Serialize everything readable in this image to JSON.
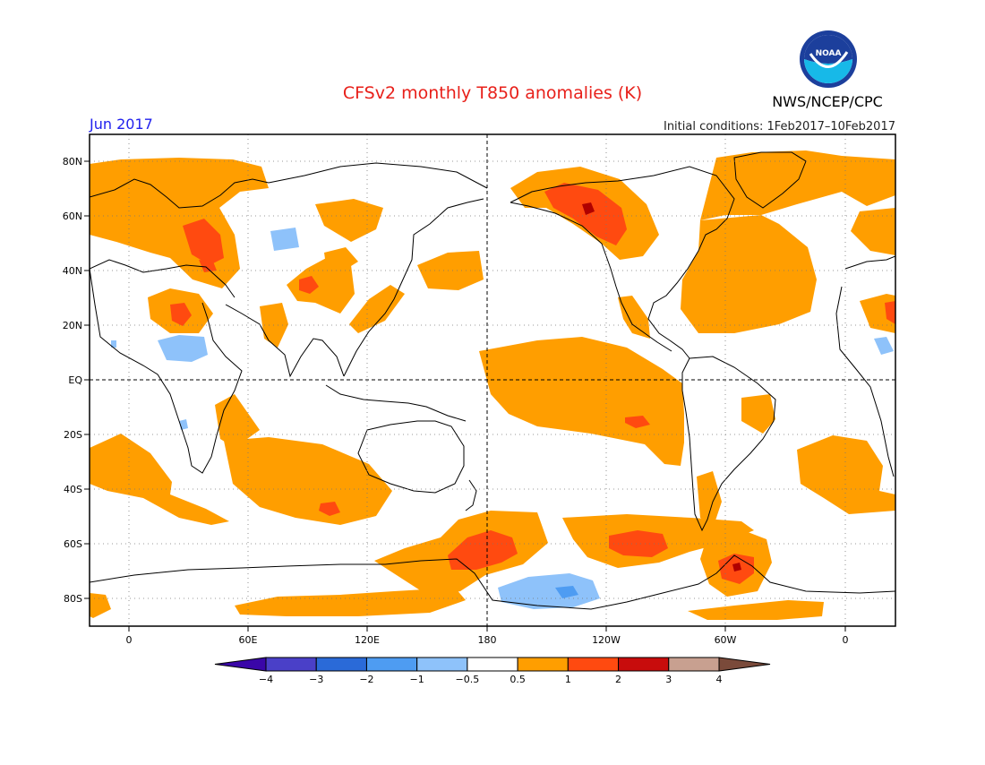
{
  "header": {
    "title": "CFSv2 monthly T850 anomalies (K)",
    "month": "Jun 2017",
    "agency": "NWS/NCEP/CPC",
    "initial_conditions": "Initial conditions: 1Feb2017–10Feb2017",
    "logo_text": "NOAA"
  },
  "map": {
    "lat_labels": [
      "80N",
      "60N",
      "40N",
      "20N",
      "EQ",
      "20S",
      "40S",
      "60S",
      "80S"
    ],
    "lon_labels": [
      "0",
      "60E",
      "120E",
      "180",
      "120W",
      "60W",
      "0"
    ]
  },
  "colorbar": {
    "labels": [
      "-4",
      "-3",
      "-2",
      "-1",
      "-0.5",
      "0.5",
      "1",
      "2",
      "3",
      "4"
    ],
    "colors": [
      "#3a06a8",
      "#4a40c8",
      "#2a6ad8",
      "#4e9cf2",
      "#8ec2fa",
      "#ffffff",
      "#ff9e00",
      "#ff4a10",
      "#c80c0c",
      "#c8a090",
      "#7a4a3a"
    ]
  },
  "colors": {
    "positive_weak": "#ff9e00",
    "positive_moderate": "#ff4a10",
    "positive_strong": "#b00000",
    "negative_weak": "#8ec2fa",
    "title_red": "#e8201a",
    "month_blue": "#2222ee"
  }
}
